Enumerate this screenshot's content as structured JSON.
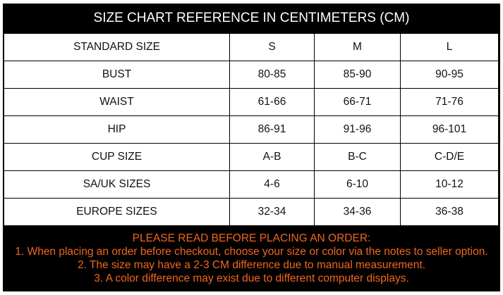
{
  "title": "SIZE CHART REFERENCE IN CENTIMETERS (CM)",
  "table": {
    "rows": [
      [
        "STANDARD SIZE",
        "S",
        "M",
        "L"
      ],
      [
        "BUST",
        "80-85",
        "85-90",
        "90-95"
      ],
      [
        "WAIST",
        "61-66",
        "66-71",
        "71-76"
      ],
      [
        "HIP",
        "86-91",
        "91-96",
        "96-101"
      ],
      [
        "CUP SIZE",
        "A-B",
        "B-C",
        "C-D/E"
      ],
      [
        "SA/UK SIZES",
        "4-6",
        "6-10",
        "10-12"
      ],
      [
        "EUROPE SIZES",
        "32-34",
        "34-36",
        "36-38"
      ]
    ]
  },
  "notes": {
    "heading": "PLEASE READ BEFORE PLACING AN ORDER:",
    "items": [
      "1. When placing an order before checkout, choose your size or color via the notes to seller option.",
      "2. The size may have a 2-3 CM difference due to manual measurement.",
      "3. A color difference may exist due to different computer displays."
    ]
  },
  "colors": {
    "background": "#000000",
    "title_text": "#ffffff",
    "notes_text": "#f2661f"
  }
}
